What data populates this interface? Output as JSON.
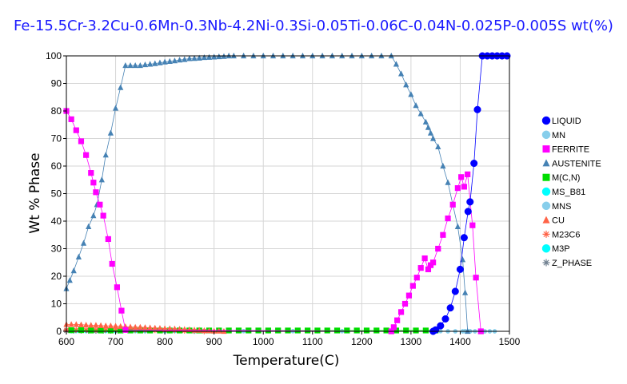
{
  "chart_data": {
    "type": "scatter",
    "title": "Fe-15.5Cr-3.2Cu-0.6Mn-0.3Nb-4.2Ni-0.3Si-0.05Ti-0.06C-0.04N-0.025P-0.005S wt(%)",
    "xlabel": "Temperature(C)",
    "ylabel": "Wt % Phase",
    "xlim": [
      600,
      1500
    ],
    "ylim": [
      0,
      100
    ],
    "xticks": [
      600,
      700,
      800,
      900,
      1000,
      1100,
      1200,
      1300,
      1400,
      1500
    ],
    "yticks": [
      0,
      10,
      20,
      30,
      40,
      50,
      60,
      70,
      80,
      90,
      100
    ],
    "grid": true,
    "legend_position": "right",
    "series": [
      {
        "name": "LIQUID",
        "color": "#0000ff",
        "marker": "circle",
        "points": [
          [
            1345,
            0
          ],
          [
            1350,
            0.5
          ],
          [
            1360,
            2
          ],
          [
            1370,
            4.5
          ],
          [
            1380,
            8.5
          ],
          [
            1390,
            14.5
          ],
          [
            1400,
            22.5
          ],
          [
            1408,
            34
          ],
          [
            1416,
            43.5
          ],
          [
            1420,
            47
          ],
          [
            1428,
            61
          ],
          [
            1435,
            80.5
          ],
          [
            1445,
            100
          ],
          [
            1455,
            100
          ],
          [
            1465,
            100
          ],
          [
            1475,
            100
          ],
          [
            1485,
            100
          ],
          [
            1495,
            100
          ]
        ]
      },
      {
        "name": "MN",
        "color": "#87ceeb",
        "marker": "circle",
        "points": [
          [
            1375,
            0
          ],
          [
            1390,
            0
          ],
          [
            1405,
            0
          ],
          [
            1420,
            0
          ]
        ]
      },
      {
        "name": "FERRITE",
        "color": "#ff00ff",
        "marker": "square",
        "points": [
          [
            600,
            80
          ],
          [
            610,
            77
          ],
          [
            620,
            73
          ],
          [
            630,
            69
          ],
          [
            640,
            64
          ],
          [
            650,
            57.5
          ],
          [
            655,
            54
          ],
          [
            660,
            50.5
          ],
          [
            668,
            46
          ],
          [
            675,
            42
          ],
          [
            685,
            33.5
          ],
          [
            693,
            24.5
          ],
          [
            703,
            16
          ],
          [
            712,
            7.5
          ],
          [
            720,
            0.5
          ],
          [
            1260,
            0
          ],
          [
            1265,
            1.5
          ],
          [
            1272,
            4
          ],
          [
            1280,
            7
          ],
          [
            1288,
            10
          ],
          [
            1296,
            13
          ],
          [
            1304,
            16.5
          ],
          [
            1312,
            19.5
          ],
          [
            1320,
            23
          ],
          [
            1328,
            26.5
          ],
          [
            1335,
            22.5
          ],
          [
            1340,
            24
          ],
          [
            1345,
            25
          ],
          [
            1355,
            30
          ],
          [
            1365,
            35
          ],
          [
            1375,
            41
          ],
          [
            1385,
            46
          ],
          [
            1395,
            52
          ],
          [
            1402,
            56
          ],
          [
            1408,
            52.5
          ],
          [
            1415,
            57
          ],
          [
            1425,
            38.5
          ],
          [
            1432,
            19.5
          ],
          [
            1442,
            0
          ]
        ]
      },
      {
        "name": "AUSTENITE",
        "color": "#4682b4",
        "marker": "triangle",
        "points": [
          [
            600,
            15.5
          ],
          [
            607,
            18.5
          ],
          [
            615,
            22
          ],
          [
            625,
            27
          ],
          [
            635,
            32
          ],
          [
            645,
            38
          ],
          [
            655,
            42
          ],
          [
            662,
            46
          ],
          [
            672,
            55
          ],
          [
            680,
            64
          ],
          [
            690,
            72
          ],
          [
            700,
            81
          ],
          [
            710,
            88.5
          ],
          [
            720,
            96.5
          ],
          [
            730,
            96.5
          ],
          [
            740,
            96.5
          ],
          [
            750,
            96.5
          ],
          [
            760,
            96.8
          ],
          [
            770,
            97
          ],
          [
            780,
            97.2
          ],
          [
            790,
            97.5
          ],
          [
            800,
            97.8
          ],
          [
            810,
            98
          ],
          [
            820,
            98.2
          ],
          [
            830,
            98.5
          ],
          [
            840,
            98.7
          ],
          [
            850,
            99
          ],
          [
            860,
            99.1
          ],
          [
            870,
            99.2
          ],
          [
            880,
            99.4
          ],
          [
            890,
            99.5
          ],
          [
            900,
            99.6
          ],
          [
            910,
            99.7
          ],
          [
            920,
            99.8
          ],
          [
            930,
            100
          ],
          [
            940,
            100
          ],
          [
            960,
            100
          ],
          [
            980,
            100
          ],
          [
            1000,
            100
          ],
          [
            1020,
            100
          ],
          [
            1040,
            100
          ],
          [
            1060,
            100
          ],
          [
            1080,
            100
          ],
          [
            1100,
            100
          ],
          [
            1120,
            100
          ],
          [
            1140,
            100
          ],
          [
            1160,
            100
          ],
          [
            1180,
            100
          ],
          [
            1200,
            100
          ],
          [
            1220,
            100
          ],
          [
            1240,
            100
          ],
          [
            1260,
            100
          ],
          [
            1270,
            97
          ],
          [
            1280,
            93.5
          ],
          [
            1290,
            89.5
          ],
          [
            1300,
            86
          ],
          [
            1310,
            82
          ],
          [
            1320,
            79
          ],
          [
            1330,
            76
          ],
          [
            1335,
            74
          ],
          [
            1340,
            72
          ],
          [
            1345,
            70
          ],
          [
            1355,
            67
          ],
          [
            1365,
            60
          ],
          [
            1375,
            54
          ],
          [
            1385,
            46
          ],
          [
            1395,
            38
          ],
          [
            1405,
            26
          ],
          [
            1410,
            14
          ],
          [
            1415,
            0
          ]
        ]
      },
      {
        "name": "M(C,N)",
        "color": "#00dd00",
        "marker": "square",
        "points": [
          [
            610,
            0.4
          ],
          [
            630,
            0.4
          ],
          [
            650,
            0.3
          ],
          [
            670,
            0.3
          ],
          [
            690,
            0.3
          ],
          [
            710,
            0.3
          ],
          [
            730,
            0.3
          ],
          [
            750,
            0.3
          ],
          [
            770,
            0.3
          ],
          [
            790,
            0.3
          ],
          [
            810,
            0.3
          ],
          [
            830,
            0.3
          ],
          [
            850,
            0.3
          ],
          [
            870,
            0.3
          ],
          [
            890,
            0.3
          ],
          [
            910,
            0.3
          ],
          [
            930,
            0.3
          ],
          [
            950,
            0.3
          ],
          [
            970,
            0.3
          ],
          [
            990,
            0.3
          ],
          [
            1010,
            0.3
          ],
          [
            1030,
            0.3
          ],
          [
            1050,
            0.3
          ],
          [
            1070,
            0.3
          ],
          [
            1090,
            0.3
          ],
          [
            1110,
            0.3
          ],
          [
            1130,
            0.3
          ],
          [
            1150,
            0.3
          ],
          [
            1170,
            0.3
          ],
          [
            1190,
            0.3
          ],
          [
            1210,
            0.3
          ],
          [
            1230,
            0.3
          ],
          [
            1250,
            0.3
          ],
          [
            1270,
            0.3
          ],
          [
            1290,
            0.3
          ],
          [
            1310,
            0.3
          ],
          [
            1330,
            0.3
          ],
          [
            1350,
            0.3
          ]
        ]
      },
      {
        "name": "MS_B81",
        "color": "#00ffff",
        "marker": "circle",
        "points": [
          [
            610,
            0.1
          ],
          [
            640,
            0.1
          ],
          [
            670,
            0.1
          ],
          [
            700,
            0.1
          ],
          [
            730,
            0.1
          ],
          [
            760,
            0.1
          ],
          [
            790,
            0.1
          ],
          [
            820,
            0.1
          ],
          [
            850,
            0.1
          ],
          [
            880,
            0.1
          ],
          [
            910,
            0.1
          ]
        ]
      },
      {
        "name": "MNS",
        "color": "#87ceeb",
        "marker": "circle",
        "points": [
          [
            610,
            0.05
          ],
          [
            660,
            0.05
          ],
          [
            710,
            0.05
          ],
          [
            760,
            0.05
          ],
          [
            810,
            0.05
          ],
          [
            860,
            0.05
          ],
          [
            910,
            0.05
          ],
          [
            960,
            0.05
          ],
          [
            1010,
            0.05
          ],
          [
            1060,
            0.05
          ],
          [
            1110,
            0.05
          ],
          [
            1160,
            0.05
          ],
          [
            1210,
            0.05
          ],
          [
            1260,
            0.05
          ],
          [
            1310,
            0.05
          ],
          [
            1360,
            0.05
          ],
          [
            1410,
            0.05
          ],
          [
            1420,
            0
          ],
          [
            1430,
            0
          ],
          [
            1440,
            0
          ],
          [
            1450,
            0
          ],
          [
            1460,
            0
          ],
          [
            1470,
            0
          ]
        ]
      },
      {
        "name": "CU",
        "color": "#ff6347",
        "marker": "triangle",
        "points": [
          [
            600,
            2.5
          ],
          [
            610,
            2.5
          ],
          [
            620,
            2.5
          ],
          [
            630,
            2.4
          ],
          [
            640,
            2.3
          ],
          [
            650,
            2.2
          ],
          [
            660,
            2.2
          ],
          [
            670,
            2.1
          ],
          [
            680,
            2
          ],
          [
            690,
            2
          ],
          [
            700,
            1.9
          ],
          [
            710,
            1.8
          ],
          [
            720,
            1.7
          ],
          [
            730,
            1.6
          ],
          [
            740,
            1.5
          ],
          [
            750,
            1.5
          ],
          [
            760,
            1.4
          ],
          [
            770,
            1.3
          ],
          [
            780,
            1.2
          ],
          [
            790,
            1.1
          ],
          [
            800,
            1
          ],
          [
            810,
            1
          ],
          [
            820,
            0.9
          ],
          [
            830,
            0.8
          ],
          [
            840,
            0.7
          ],
          [
            850,
            0.6
          ],
          [
            860,
            0.5
          ],
          [
            870,
            0.4
          ],
          [
            880,
            0.3
          ],
          [
            890,
            0.2
          ],
          [
            900,
            0.1
          ],
          [
            910,
            0.1
          ],
          [
            920,
            0
          ]
        ]
      },
      {
        "name": "M23C6",
        "color": "#ff6347",
        "marker": "star",
        "points": [
          [
            600,
            0.5
          ],
          [
            620,
            0.5
          ],
          [
            640,
            0.5
          ],
          [
            660,
            0.5
          ],
          [
            680,
            0.5
          ],
          [
            700,
            0.5
          ],
          [
            720,
            0.5
          ],
          [
            740,
            0.4
          ],
          [
            760,
            0.4
          ],
          [
            780,
            0.4
          ],
          [
            800,
            0.3
          ],
          [
            820,
            0.3
          ],
          [
            840,
            0.2
          ],
          [
            860,
            0.1
          ],
          [
            880,
            0
          ]
        ]
      },
      {
        "name": "M3P",
        "color": "#00ffff",
        "marker": "circle",
        "points": [
          [
            620,
            0.1
          ],
          [
            680,
            0.1
          ],
          [
            740,
            0.1
          ],
          [
            800,
            0.05
          ],
          [
            860,
            0
          ]
        ]
      },
      {
        "name": "Z_PHASE",
        "color": "#708090",
        "marker": "star",
        "points": [
          [
            600,
            0.2
          ],
          [
            615,
            0.2
          ],
          [
            630,
            0.2
          ],
          [
            645,
            0.2
          ],
          [
            660,
            0.2
          ],
          [
            675,
            0.2
          ],
          [
            690,
            0.2
          ],
          [
            705,
            0.2
          ]
        ]
      }
    ]
  }
}
